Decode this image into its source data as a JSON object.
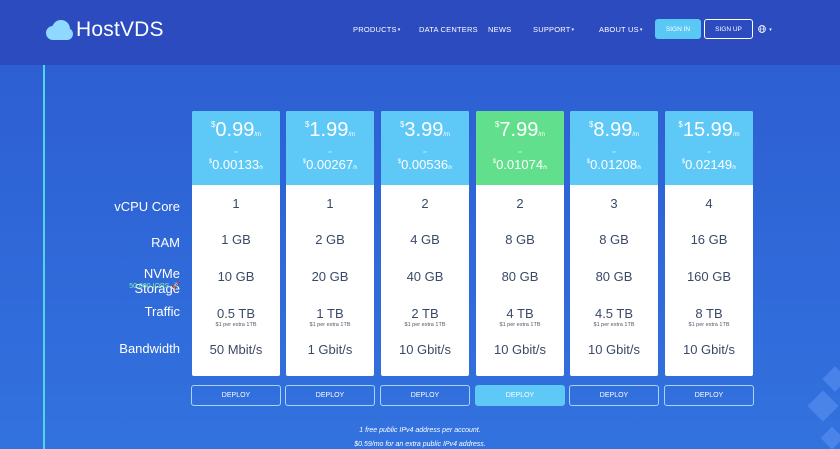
{
  "brand": {
    "name": "HostVDS"
  },
  "nav": {
    "items": [
      {
        "label": "PRODUCTS",
        "has_dropdown": true
      },
      {
        "label": "DATA CENTERS",
        "has_dropdown": false
      },
      {
        "label": "NEWS",
        "has_dropdown": false
      },
      {
        "label": "SUPPORT",
        "has_dropdown": true
      },
      {
        "label": "ABOUT US",
        "has_dropdown": true
      }
    ],
    "sign_in": "SIGN IN",
    "sign_up": "SIGN UP",
    "language_icon": "globe-icon",
    "caret": "▾"
  },
  "pricing": {
    "row_labels": {
      "vcpu": "vCPU Core",
      "ram": "RAM",
      "storage": "NVMe Storage",
      "storage_note": "50 000 IOPS 🚀",
      "traffic": "Traffic",
      "bandwidth": "Bandwidth"
    },
    "currency": "$",
    "per_month": "/m",
    "per_hour": "/h",
    "or_label": "or",
    "deploy_label": "DEPLOY",
    "plans": [
      {
        "price_month": "0.99",
        "price_hour": "0.00133",
        "vcpu": "1",
        "ram": "1 GB",
        "storage": "10 GB",
        "traffic": "0.5 TB",
        "traffic_extra": "$1 per extra 1TB",
        "bandwidth": "50 Mbit/s",
        "featured": false
      },
      {
        "price_month": "1.99",
        "price_hour": "0.00267",
        "vcpu": "1",
        "ram": "2 GB",
        "storage": "20 GB",
        "traffic": "1 TB",
        "traffic_extra": "$1 per extra 1TB",
        "bandwidth": "1 Gbit/s",
        "featured": false
      },
      {
        "price_month": "3.99",
        "price_hour": "0.00536",
        "vcpu": "2",
        "ram": "4 GB",
        "storage": "40 GB",
        "traffic": "2 TB",
        "traffic_extra": "$1 per extra 1TB",
        "bandwidth": "10 Gbit/s",
        "featured": false
      },
      {
        "price_month": "7.99",
        "price_hour": "0.01074",
        "vcpu": "2",
        "ram": "8 GB",
        "storage": "80 GB",
        "traffic": "4 TB",
        "traffic_extra": "$1 per extra 1TB",
        "bandwidth": "10 Gbit/s",
        "featured": true
      },
      {
        "price_month": "8.99",
        "price_hour": "0.01208",
        "vcpu": "3",
        "ram": "8 GB",
        "storage": "80 GB",
        "traffic": "4.5 TB",
        "traffic_extra": "$1 per extra 1TB",
        "bandwidth": "10 Gbit/s",
        "featured": false
      },
      {
        "price_month": "15.99",
        "price_hour": "0.02149",
        "vcpu": "4",
        "ram": "16 GB",
        "storage": "160 GB",
        "traffic": "8 TB",
        "traffic_extra": "$1 per extra 1TB",
        "bandwidth": "10 Gbit/s",
        "featured": false
      }
    ],
    "notes": [
      "1 free public IPv4 address per account.",
      "$0.59/mo for an extra public IPv4 address."
    ]
  },
  "colors": {
    "header_bg": "#2b4bbf",
    "page_bg": "#2f6fd9",
    "plan_head": "#5ec8f7",
    "plan_head_featured": "#62df8c",
    "accent_line": "#4fd6e8"
  }
}
